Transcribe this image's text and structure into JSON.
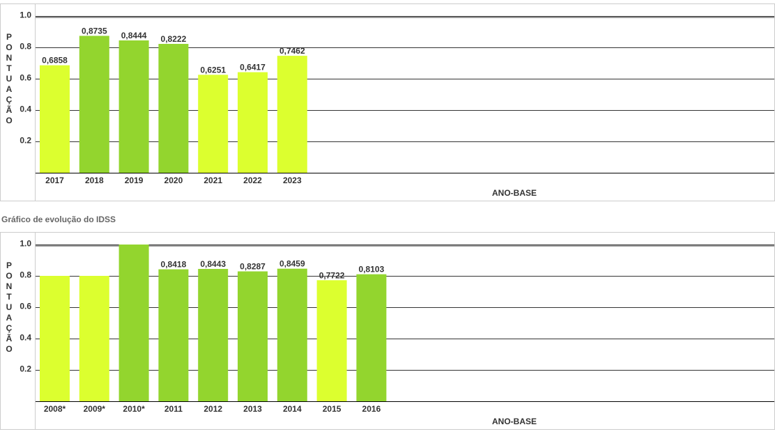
{
  "caption": "Gráfico de evolução do IDSS",
  "colors": {
    "light": "#dcff2f",
    "dark": "#93d52e",
    "grid": "#333333",
    "text": "#333333"
  },
  "chart_data": [
    {
      "type": "bar",
      "ylabel": "PONTUAÇÃO",
      "xlabel": "ANO-BASE",
      "ylim": [
        0,
        1.1
      ],
      "yticks": [
        "0.2",
        "0.4",
        "0.6",
        "0.8",
        "1.0"
      ],
      "categories": [
        "2017",
        "2018",
        "2019",
        "2020",
        "2021",
        "2022",
        "2023"
      ],
      "values": [
        0.6858,
        0.8735,
        0.8444,
        0.8222,
        0.6251,
        0.6417,
        0.7462
      ],
      "value_labels": [
        "0,6858",
        "0,8735",
        "0,8444",
        "0,8222",
        "0,6251",
        "0,6417",
        "0,7462"
      ],
      "bar_colors": [
        "light",
        "dark",
        "dark",
        "dark",
        "light",
        "light",
        "light"
      ]
    },
    {
      "type": "bar",
      "ylabel": "PONTUAÇÃO",
      "xlabel": "ANO-BASE",
      "ylim": [
        0,
        1.1
      ],
      "yticks": [
        "0.2",
        "0.4",
        "0.6",
        "0.8",
        "1.0"
      ],
      "categories": [
        "2008*",
        "2009*",
        "2010*",
        "2011",
        "2012",
        "2013",
        "2014",
        "2015",
        "2016"
      ],
      "values": [
        0.8,
        0.8,
        1.0,
        0.8418,
        0.8443,
        0.8287,
        0.8459,
        0.7722,
        0.8103
      ],
      "value_labels": [
        "",
        "",
        "",
        "0,8418",
        "0,8443",
        "0,8287",
        "0,8459",
        "0,7722",
        "0,8103"
      ],
      "bar_colors": [
        "light",
        "light",
        "dark",
        "dark",
        "dark",
        "dark",
        "dark",
        "light",
        "dark"
      ]
    }
  ]
}
